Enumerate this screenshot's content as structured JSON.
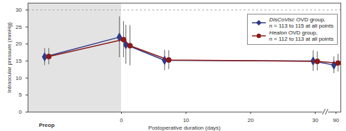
{
  "chart_data": {
    "type": "line",
    "x_label": "Postoperative duration (days)",
    "y_label": "Intraocular pressure (mmHg)",
    "preop_label": "Preop",
    "x": [
      0,
      1,
      7,
      30,
      90
    ],
    "xlim": [
      0,
      92
    ],
    "xticks": [
      0,
      10,
      20,
      30,
      90
    ],
    "ylim": [
      0,
      32
    ],
    "yticks": [
      0,
      5,
      10,
      15,
      20,
      25,
      30
    ],
    "reference_line": 30,
    "legend": "top-right",
    "series": [
      {
        "name": "DisCoVisc OVD group, n = 113 to 115 at all points",
        "color": "#2e3a87",
        "marker": "diamond",
        "preop": 16.2,
        "preop_error": 2.5,
        "values": [
          22.0,
          19.8,
          15.2,
          15.0,
          13.8
        ],
        "errors": [
          6.0,
          5.7,
          3.0,
          3.0,
          2.5
        ]
      },
      {
        "name": "Healon OVD group, n = 112 to 113 at all points",
        "color": "#8b1a1a",
        "marker": "circle",
        "preop": 16.3,
        "preop_error": 2.4,
        "values": [
          21.3,
          19.5,
          15.3,
          14.9,
          14.4
        ],
        "errors": [
          5.3,
          5.9,
          2.8,
          2.8,
          2.6
        ]
      }
    ]
  }
}
